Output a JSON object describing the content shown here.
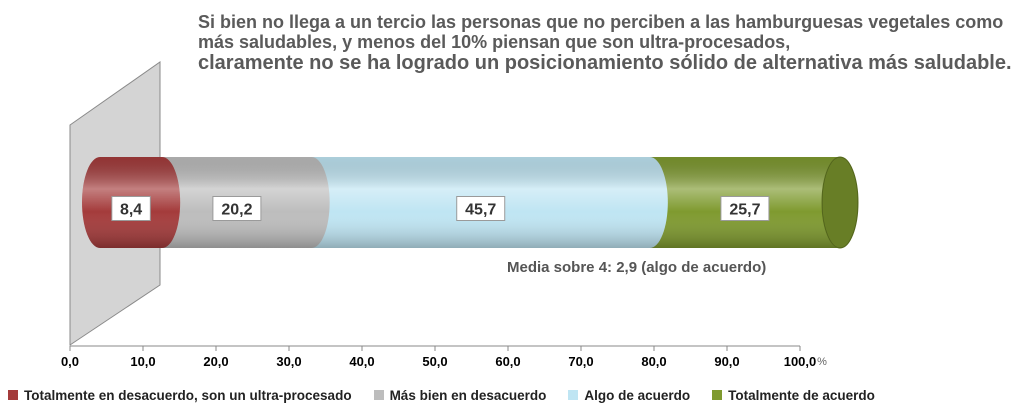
{
  "title": {
    "line1": "Si bien no llega a un tercio las personas que no perciben a las hamburguesas vegetales como más saludables, y menos del 10% piensan que son ultra-procesados,",
    "line2": "claramente no se ha logrado un posicionamiento sólido de alternativa más saludable."
  },
  "chart_data": {
    "type": "bar",
    "orientation": "horizontal-stacked-100",
    "title": "Si bien no llega a un tercio las personas que no perciben a las hamburguesas vegetales como más saludables, y menos del 10% piensan que son ultra-procesados, claramente no se ha logrado un posicionamiento sólido de alternativa más saludable.",
    "xlabel": "%",
    "xlim": [
      0,
      100
    ],
    "xticks": [
      "0,0",
      "10,0",
      "20,0",
      "30,0",
      "40,0",
      "50,0",
      "60,0",
      "70,0",
      "80,0",
      "90,0",
      "100,0"
    ],
    "series": [
      {
        "name": "Totalmente en desacuerdo, son un ultra-procesado",
        "value": 8.4,
        "label": "8,4",
        "color": "#a43b3b"
      },
      {
        "name": "Más bien en desacuerdo",
        "value": 20.2,
        "label": "20,2",
        "color": "#bdbdbd"
      },
      {
        "name": "Algo de acuerdo",
        "value": 45.7,
        "label": "45,7",
        "color": "#bfe5f3"
      },
      {
        "name": "Totalmente de acuerdo",
        "value": 25.7,
        "label": "25,7",
        "color": "#7f9a2f"
      }
    ],
    "annotation": "Media sobre 4: 2,9 (algo de acuerdo)",
    "legend_position": "bottom"
  }
}
